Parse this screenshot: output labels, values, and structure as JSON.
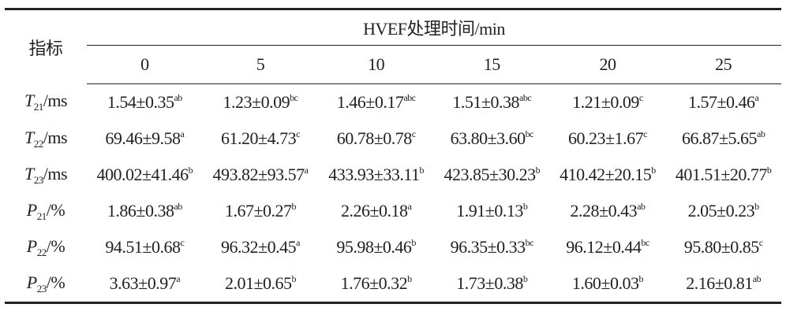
{
  "table": {
    "corner": "指标",
    "group_header": "HVEF处理时间/min",
    "columns": [
      "0",
      "5",
      "10",
      "15",
      "20",
      "25"
    ],
    "rows": [
      {
        "label": {
          "symbol": "T",
          "sub": "21",
          "unit": "/ms"
        },
        "cells": [
          {
            "value": "1.54±0.35",
            "sig": "ab"
          },
          {
            "value": "1.23±0.09",
            "sig": "bc"
          },
          {
            "value": "1.46±0.17",
            "sig": "abc"
          },
          {
            "value": "1.51±0.38",
            "sig": "abc"
          },
          {
            "value": "1.21±0.09",
            "sig": "c"
          },
          {
            "value": "1.57±0.46",
            "sig": "a"
          }
        ]
      },
      {
        "label": {
          "symbol": "T",
          "sub": "22",
          "unit": "/ms"
        },
        "cells": [
          {
            "value": "69.46±9.58",
            "sig": "a"
          },
          {
            "value": "61.20±4.73",
            "sig": "c"
          },
          {
            "value": "60.78±0.78",
            "sig": "c"
          },
          {
            "value": "63.80±3.60",
            "sig": "bc"
          },
          {
            "value": "60.23±1.67",
            "sig": "c"
          },
          {
            "value": "66.87±5.65",
            "sig": "ab"
          }
        ]
      },
      {
        "label": {
          "symbol": "T",
          "sub": "23",
          "unit": "/ms"
        },
        "cells": [
          {
            "value": "400.02±41.46",
            "sig": "b"
          },
          {
            "value": "493.82±93.57",
            "sig": "a"
          },
          {
            "value": "433.93±33.11",
            "sig": "b"
          },
          {
            "value": "423.85±30.23",
            "sig": "b"
          },
          {
            "value": "410.42±20.15",
            "sig": "b"
          },
          {
            "value": "401.51±20.77",
            "sig": "b"
          }
        ]
      },
      {
        "label": {
          "symbol": "P",
          "sub": "21",
          "unit": "/%"
        },
        "cells": [
          {
            "value": "1.86±0.38",
            "sig": "ab"
          },
          {
            "value": "1.67±0.27",
            "sig": "b"
          },
          {
            "value": "2.26±0.18",
            "sig": "a"
          },
          {
            "value": "1.91±0.13",
            "sig": "b"
          },
          {
            "value": "2.28±0.43",
            "sig": "ab"
          },
          {
            "value": "2.05±0.23",
            "sig": "b"
          }
        ]
      },
      {
        "label": {
          "symbol": "P",
          "sub": "22",
          "unit": "/%"
        },
        "cells": [
          {
            "value": "94.51±0.68",
            "sig": "c"
          },
          {
            "value": "96.32±0.45",
            "sig": "a"
          },
          {
            "value": "95.98±0.46",
            "sig": "b"
          },
          {
            "value": "96.35±0.33",
            "sig": "bc"
          },
          {
            "value": "96.12±0.44",
            "sig": "bc"
          },
          {
            "value": "95.80±0.85",
            "sig": "c"
          }
        ]
      },
      {
        "label": {
          "symbol": "P",
          "sub": "23",
          "unit": "/%"
        },
        "cells": [
          {
            "value": "3.63±0.97",
            "sig": "a"
          },
          {
            "value": "2.01±0.65",
            "sig": "b"
          },
          {
            "value": "1.76±0.32",
            "sig": "b"
          },
          {
            "value": "1.73±0.38",
            "sig": "b"
          },
          {
            "value": "1.60±0.03",
            "sig": "b"
          },
          {
            "value": "2.16±0.81",
            "sig": "ab"
          }
        ]
      }
    ]
  }
}
